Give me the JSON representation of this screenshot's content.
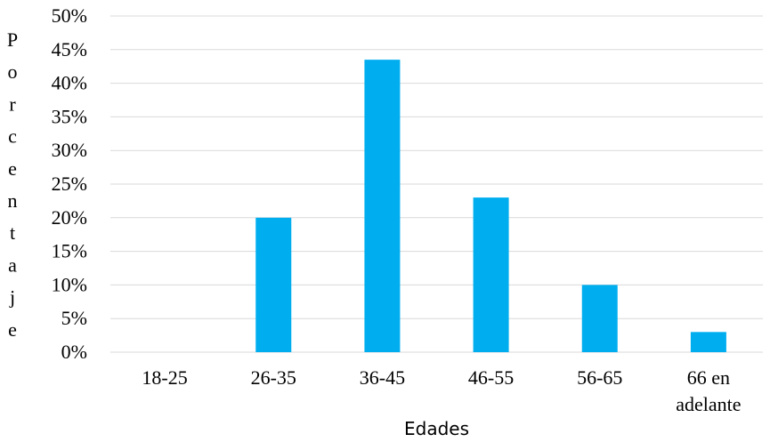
{
  "chart_data": {
    "type": "bar",
    "title": "",
    "xlabel": "Edades",
    "ylabel": "Porcentaje",
    "categories": [
      "18-25",
      "26-35",
      "36-45",
      "46-55",
      "56-65",
      "66 en adelante"
    ],
    "category_lines": [
      [
        "18-25"
      ],
      [
        "26-35"
      ],
      [
        "36-45"
      ],
      [
        "46-55"
      ],
      [
        "56-65"
      ],
      [
        "66 en",
        "adelante"
      ]
    ],
    "values": [
      0,
      20,
      43.5,
      23,
      10,
      3
    ],
    "ylim": [
      0,
      50
    ],
    "yticks": [
      0,
      5,
      10,
      15,
      20,
      25,
      30,
      35,
      40,
      45,
      50
    ],
    "ytick_labels": [
      "0%",
      "5%",
      "10%",
      "15%",
      "20%",
      "25%",
      "30%",
      "35%",
      "40%",
      "45%",
      "50%"
    ],
    "grid": true,
    "legend": "none",
    "bar_color": "#00AEEF",
    "grid_color": "#D9D9D9"
  }
}
